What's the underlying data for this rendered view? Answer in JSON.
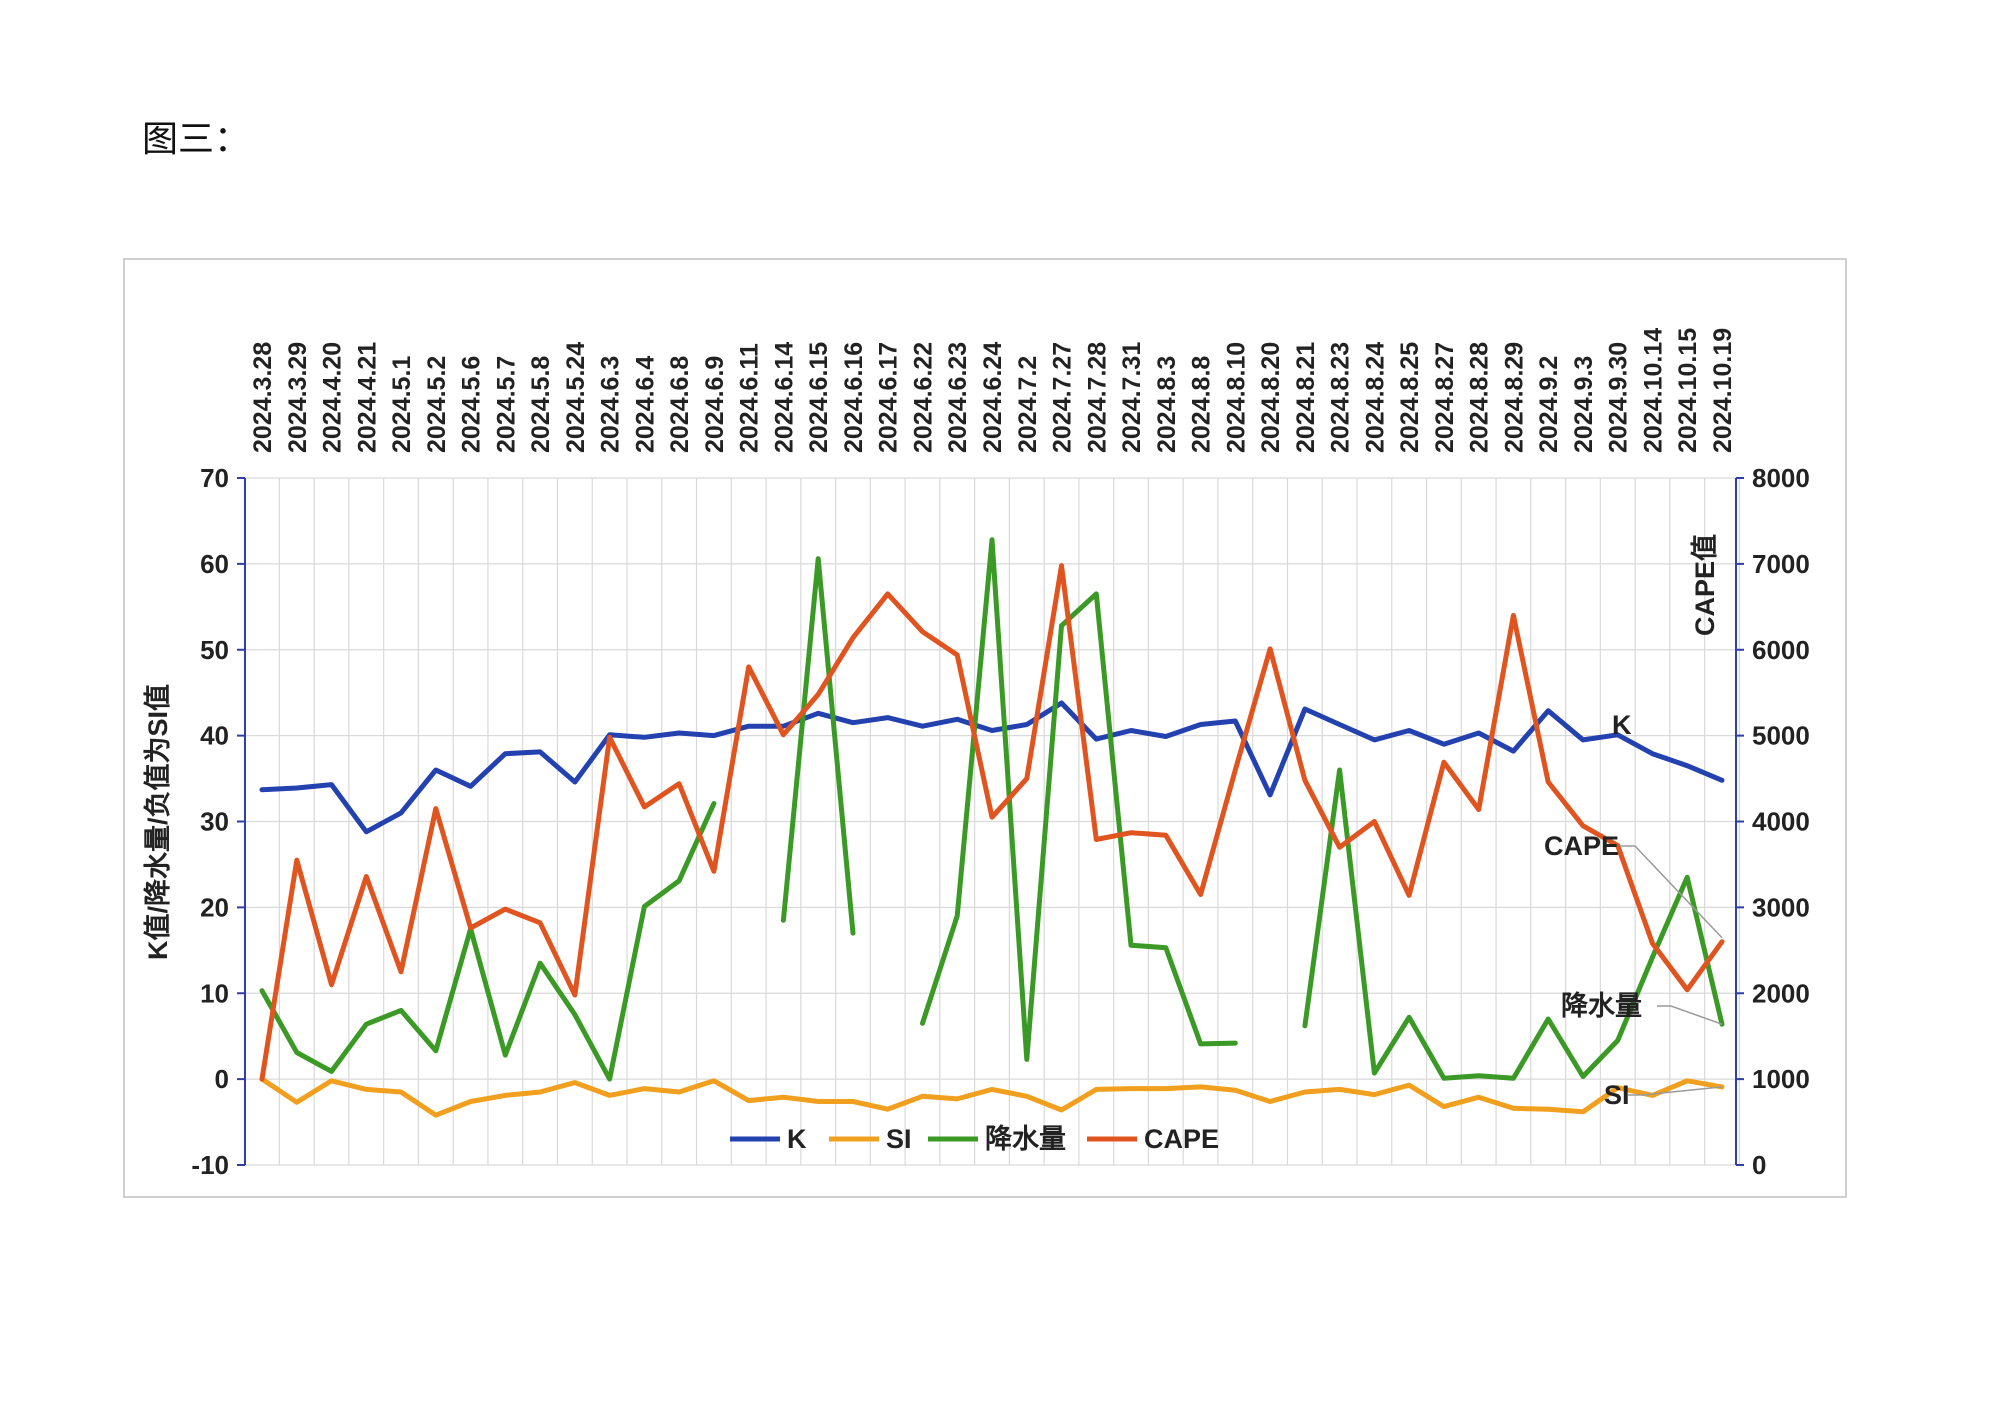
{
  "page": {
    "caption": "图三："
  },
  "chart_data": {
    "type": "line",
    "categories": [
      "2024.3.28",
      "2024.3.29",
      "2024.4.20",
      "2024.4.21",
      "2024.5.1",
      "2024.5.2",
      "2024.5.6",
      "2024.5.7",
      "2024.5.8",
      "2024.5.24",
      "2024.6.3",
      "2024.6.4",
      "2024.6.8",
      "2024.6.9",
      "2024.6.11",
      "2024.6.14",
      "2024.6.15",
      "2024.6.16",
      "2024.6.17",
      "2024.6.22",
      "2024.6.23",
      "2024.6.24",
      "2024.7.2",
      "2024.7.27",
      "2024.7.28",
      "2024.7.31",
      "2024.8.3",
      "2024.8.8",
      "2024.8.10",
      "2024.8.20",
      "2024.8.21",
      "2024.8.23",
      "2024.8.24",
      "2024.8.25",
      "2024.8.27",
      "2024.8.28",
      "2024.8.29",
      "2024.9.2",
      "2024.9.3",
      "2024.9.30",
      "2024.10.14",
      "2024.10.15",
      "2024.10.19"
    ],
    "y_left": {
      "label": "K值/降水量/负值为SI值",
      "min": -10,
      "max": 70,
      "ticks": [
        -10,
        0,
        10,
        20,
        30,
        40,
        50,
        60,
        70
      ]
    },
    "y_right": {
      "label": "CAPE值",
      "min": 0,
      "max": 8000,
      "ticks": [
        0,
        1000,
        2000,
        3000,
        4000,
        5000,
        6000,
        7000,
        8000
      ]
    },
    "grid": true,
    "legend": {
      "position": "bottom-inside",
      "entries": [
        "K",
        "SI",
        "降水量",
        "CAPE"
      ]
    },
    "series": [
      {
        "name": "K",
        "axis": "left",
        "color": "#2441b0",
        "values": [
          33.7,
          33.9,
          34.3,
          28.8,
          31.0,
          36.0,
          34.1,
          37.9,
          38.1,
          34.6,
          40.1,
          39.8,
          40.3,
          40.0,
          41.1,
          41.1,
          42.6,
          41.5,
          42.1,
          41.1,
          41.9,
          40.6,
          41.3,
          43.8,
          39.6,
          40.6,
          39.9,
          41.3,
          41.7,
          33.1,
          43.1,
          41.3,
          39.5,
          40.6,
          39.0,
          40.3,
          38.2,
          42.9,
          39.5,
          40.1,
          37.9,
          36.5,
          34.8
        ]
      },
      {
        "name": "SI",
        "axis": "left",
        "color": "#f0a01e",
        "values": [
          0.0,
          -2.7,
          -0.2,
          -1.2,
          -1.5,
          -4.2,
          -2.6,
          -1.9,
          -1.5,
          -0.4,
          -1.9,
          -1.1,
          -1.5,
          -0.2,
          -2.5,
          -2.1,
          -2.6,
          -2.6,
          -3.5,
          -2.0,
          -2.3,
          -1.2,
          -2.0,
          -3.6,
          -1.2,
          -1.1,
          -1.1,
          -0.9,
          -1.3,
          -2.6,
          -1.5,
          -1.2,
          -1.8,
          -0.7,
          -3.2,
          -2.1,
          -3.4,
          -3.5,
          -3.8,
          -1.0,
          -1.9,
          -0.2,
          -0.9
        ]
      },
      {
        "name": "降水量",
        "axis": "left",
        "color": "#3a9a25",
        "values": [
          10.3,
          3.1,
          0.9,
          6.4,
          8.0,
          3.3,
          17.5,
          2.8,
          13.5,
          7.5,
          0.0,
          20.1,
          23.1,
          32.1,
          null,
          18.5,
          60.6,
          17.0,
          null,
          6.5,
          19.0,
          62.8,
          2.3,
          52.8,
          56.5,
          15.6,
          15.3,
          4.1,
          4.2,
          null,
          6.2,
          36.0,
          0.7,
          7.2,
          0.1,
          0.4,
          0.1,
          7.0,
          0.3,
          4.5,
          14.2,
          23.5,
          6.4
        ]
      },
      {
        "name": "CAPE",
        "axis": "right",
        "color": "#e0541f",
        "values": [
          1000,
          3550,
          2100,
          3360,
          2250,
          4150,
          2760,
          2980,
          2820,
          1980,
          4980,
          4170,
          4440,
          3420,
          5800,
          5010,
          5480,
          6140,
          6650,
          6210,
          5940,
          4050,
          4500,
          6980,
          3790,
          3870,
          3840,
          3150,
          4600,
          6010,
          4480,
          3700,
          4000,
          3140,
          4690,
          4140,
          6400,
          4460,
          3950,
          3720,
          2580,
          2040,
          2600
        ]
      }
    ],
    "annotations": [
      {
        "text": "K",
        "series": "K"
      },
      {
        "text": "CAPE",
        "series": "CAPE"
      },
      {
        "text": "降水量",
        "series": "降水量"
      },
      {
        "text": "SI",
        "series": "SI"
      }
    ]
  }
}
